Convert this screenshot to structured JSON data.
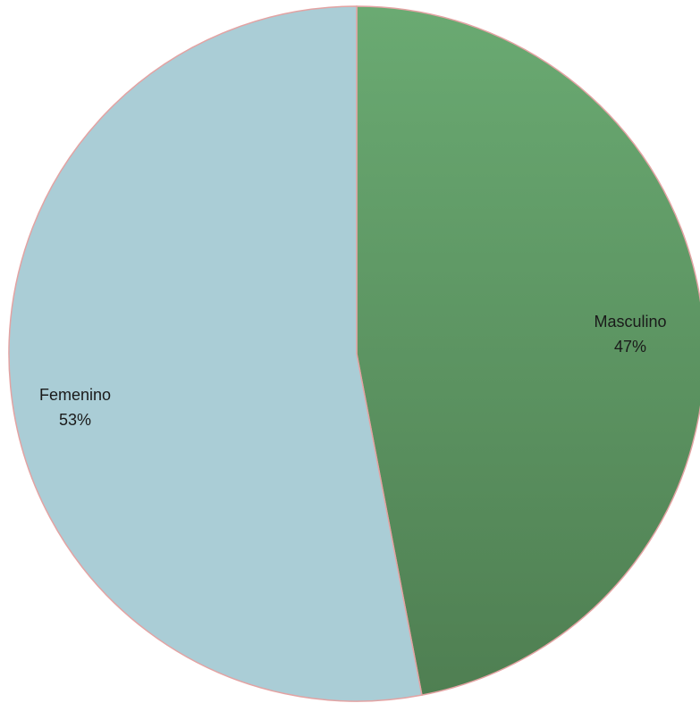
{
  "chart_data": {
    "type": "pie",
    "categories": [
      "Masculino",
      "Femenino"
    ],
    "values": [
      47,
      53
    ],
    "data_labels": [
      {
        "name": "Masculino",
        "value": "47%"
      },
      {
        "name": "Femenino",
        "value": "53%"
      }
    ],
    "start_angle": "12 o'clock",
    "direction": "clockwise",
    "legend": "none",
    "colors": {
      "Masculino": "#5f9866",
      "Femenino": "#aacdd6",
      "slice_border": "#e3a3a3"
    }
  }
}
